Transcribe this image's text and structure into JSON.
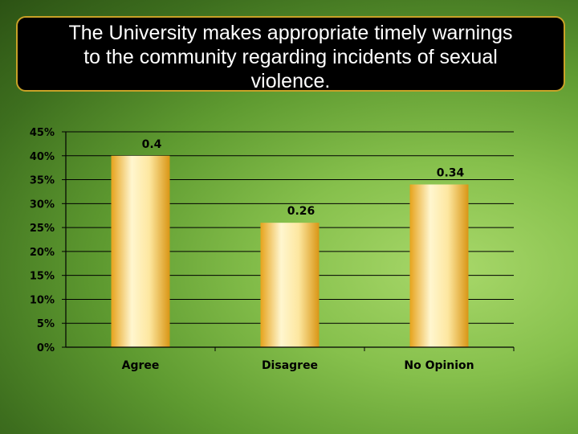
{
  "title": "The University makes appropriate timely warnings\nto the community regarding incidents of sexual\nviolence.",
  "colors": {
    "background": "#6fae3a",
    "title_box": "#000000",
    "title_border": "#c9a227",
    "bar_light": "#fff4c8",
    "bar_dark": "#e0a21a"
  },
  "chart_data": {
    "type": "bar",
    "categories": [
      "Agree",
      "Disagree",
      "No Opinion"
    ],
    "values": [
      0.4,
      0.26,
      0.34
    ],
    "data_labels": [
      "0.4",
      "0.26",
      "0.34"
    ],
    "ylim": [
      0,
      0.45
    ],
    "yticks": [
      0,
      0.05,
      0.1,
      0.15,
      0.2,
      0.25,
      0.3,
      0.35,
      0.4,
      0.45
    ],
    "ytick_labels": [
      "0%",
      "5%",
      "10%",
      "15%",
      "20%",
      "25%",
      "30%",
      "35%",
      "40%",
      "45%"
    ],
    "grid": true,
    "legend": "none"
  }
}
